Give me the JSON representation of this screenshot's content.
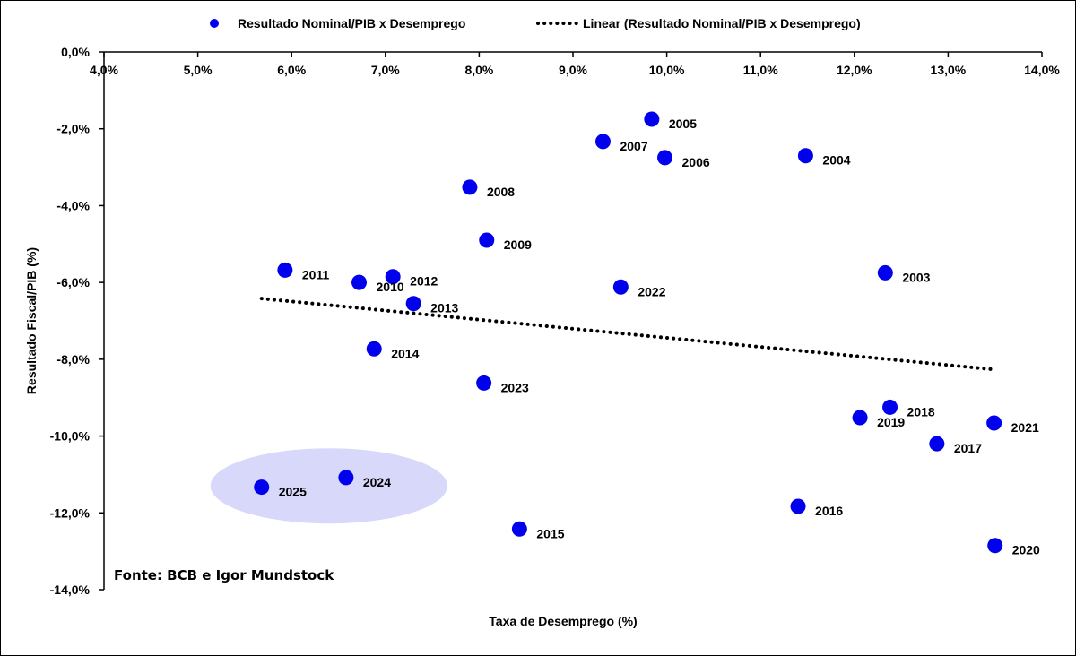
{
  "chart_data": {
    "type": "scatter",
    "xlabel": "Taxa de Desemprego (%)",
    "ylabel": "Resultado Fiscal/PIB (%)",
    "xlim": [
      4.0,
      14.0
    ],
    "ylim": [
      -14.0,
      0.0
    ],
    "x_ticks": [
      "4,0%",
      "5,0%",
      "6,0%",
      "7,0%",
      "8,0%",
      "9,0%",
      "10,0%",
      "11,0%",
      "12,0%",
      "13,0%",
      "14,0%"
    ],
    "y_ticks": [
      "0,0%",
      "-2,0%",
      "-4,0%",
      "-6,0%",
      "-8,0%",
      "-10,0%",
      "-12,0%",
      "-14,0%"
    ],
    "x_axis_position": "top",
    "grid": false,
    "legend_position": "top",
    "series": [
      {
        "name": "Resultado Nominal/PIB x Desemprego",
        "color": "#0000ee",
        "points": [
          {
            "label": "2003",
            "x": 12.33,
            "y": -5.75
          },
          {
            "label": "2004",
            "x": 11.48,
            "y": -2.7
          },
          {
            "label": "2005",
            "x": 9.84,
            "y": -1.75
          },
          {
            "label": "2006",
            "x": 9.98,
            "y": -2.75
          },
          {
            "label": "2007",
            "x": 9.32,
            "y": -2.33
          },
          {
            "label": "2008",
            "x": 7.9,
            "y": -3.52
          },
          {
            "label": "2009",
            "x": 8.08,
            "y": -4.9
          },
          {
            "label": "2010",
            "x": 6.72,
            "y": -6.0
          },
          {
            "label": "2011",
            "x": 5.93,
            "y": -5.68
          },
          {
            "label": "2012",
            "x": 7.08,
            "y": -5.85
          },
          {
            "label": "2013",
            "x": 7.3,
            "y": -6.55
          },
          {
            "label": "2014",
            "x": 6.88,
            "y": -7.73
          },
          {
            "label": "2015",
            "x": 8.43,
            "y": -12.42
          },
          {
            "label": "2016",
            "x": 11.4,
            "y": -11.83
          },
          {
            "label": "2017",
            "x": 12.88,
            "y": -10.2
          },
          {
            "label": "2018",
            "x": 12.38,
            "y": -9.25
          },
          {
            "label": "2019",
            "x": 12.06,
            "y": -9.52
          },
          {
            "label": "2020",
            "x": 13.5,
            "y": -12.85
          },
          {
            "label": "2021",
            "x": 13.49,
            "y": -9.66
          },
          {
            "label": "2022",
            "x": 9.51,
            "y": -6.12
          },
          {
            "label": "2023",
            "x": 8.05,
            "y": -8.62
          },
          {
            "label": "2024",
            "x": 6.58,
            "y": -11.08
          },
          {
            "label": "2025",
            "x": 5.68,
            "y": -11.33
          }
        ]
      },
      {
        "name": "Linear (Resultado Nominal/PIB x Desemprego)",
        "type": "trendline",
        "style": "dotted",
        "color": "#000000",
        "x": [
          5.68,
          13.5
        ],
        "y": [
          -6.42,
          -8.27
        ]
      }
    ],
    "highlight": {
      "shape": "ellipse",
      "color": "#d8d8fa",
      "covers": [
        "2024",
        "2025"
      ]
    },
    "annotation": "Fonte: BCB e Igor Mundstock"
  }
}
